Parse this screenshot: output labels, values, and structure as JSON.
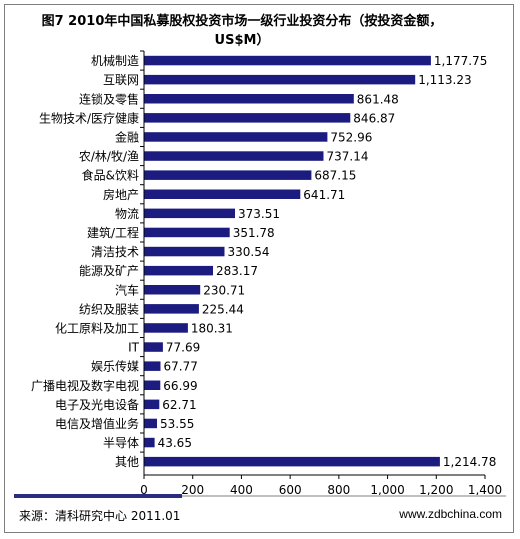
{
  "chart_data": {
    "type": "bar",
    "orientation": "horizontal",
    "title": "图7 2010年中国私募股权投资市场一级行业投资分布（按投资金额，US$M）",
    "categories": [
      "机械制造",
      "互联网",
      "连锁及零售",
      "生物技术/医疗健康",
      "金融",
      "农/林/牧/渔",
      "食品&饮料",
      "房地产",
      "物流",
      "建筑/工程",
      "清洁技术",
      "能源及矿产",
      "汽车",
      "纺织及服装",
      "化工原料及加工",
      "IT",
      "娱乐传媒",
      "广播电视及数字电视",
      "电子及光电设备",
      "电信及增值业务",
      "半导体",
      "其他"
    ],
    "values": [
      1177.75,
      1113.23,
      861.48,
      846.87,
      752.96,
      737.14,
      687.15,
      641.71,
      373.51,
      351.78,
      330.54,
      283.17,
      230.71,
      225.44,
      180.31,
      77.69,
      67.77,
      66.99,
      62.71,
      53.55,
      43.65,
      1214.78
    ],
    "value_labels": [
      "1,177.75",
      "1,113.23",
      "861.48",
      "846.87",
      "752.96",
      "737.14",
      "687.15",
      "641.71",
      "373.51",
      "351.78",
      "330.54",
      "283.17",
      "230.71",
      "225.44",
      "180.31",
      "77.69",
      "67.77",
      "66.99",
      "62.71",
      "53.55",
      "43.65",
      "1,214.78"
    ],
    "xlim": [
      0,
      1400
    ],
    "xticks": [
      "0",
      "200",
      "400",
      "600",
      "800",
      "1,000",
      "1,200",
      "1,400"
    ],
    "grid": false,
    "bar_color": "#1c1c80"
  },
  "footer": {
    "source": "来源：清科研究中心 2011.01",
    "website": "www.zdbchina.com"
  }
}
